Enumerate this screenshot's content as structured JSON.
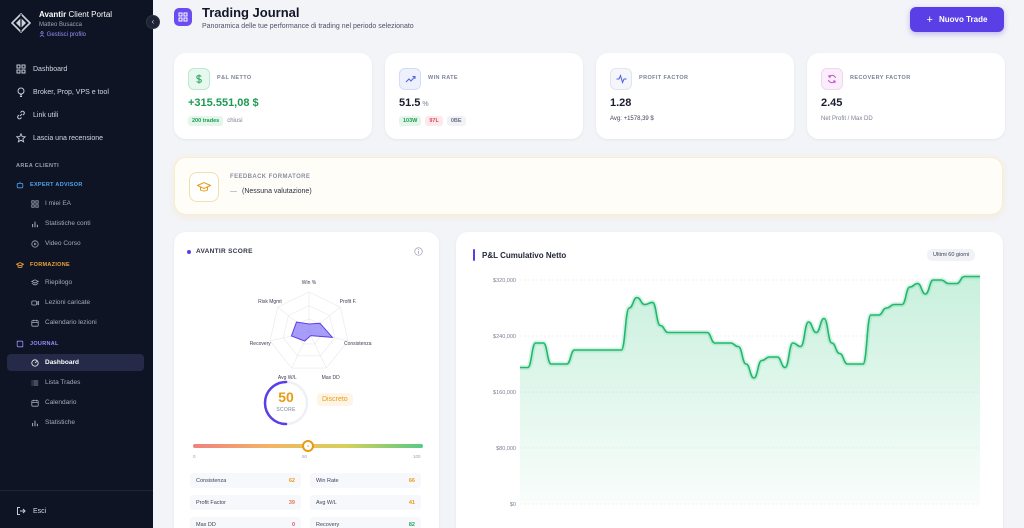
{
  "sidebar": {
    "brand_bold": "Avantir",
    "brand_light": "Client Portal",
    "user": "Matteo Busacca",
    "profile_link": "Gestisci profilo",
    "collapse": "‹",
    "items": [
      "Dashboard",
      "Broker, Prop, VPS e tool",
      "Link utili",
      "Lascia una recensione"
    ],
    "section": "AREA CLIENTI",
    "groups": [
      {
        "label": "EXPERT ADVISOR",
        "color": "#4ea3f1",
        "items": [
          "I miei EA",
          "Statistiche conti",
          "Video Corso"
        ]
      },
      {
        "label": "FORMAZIONE",
        "color": "#f1a43a",
        "items": [
          "Riepilogo",
          "Lezioni caricate",
          "Calendario lezioni"
        ]
      },
      {
        "label": "JOURNAL",
        "color": "#9c8cff",
        "items": [
          "Dashboard",
          "Lista Trades",
          "Calendario",
          "Statistiche"
        ]
      }
    ],
    "logout": "Esci"
  },
  "header": {
    "title": "Trading Journal",
    "subtitle": "Panoramica delle tue performance di trading nel periodo selezionato",
    "new_button": "Nuovo Trade"
  },
  "kpis": {
    "pnl": {
      "label": "P&L NETTO",
      "value": "+315.551,08 $",
      "badge": "200 trades",
      "note": "chiusi"
    },
    "winrate": {
      "label": "WIN RATE",
      "value": "51.5",
      "unit": "%",
      "wins": "103W",
      "losses": "97L",
      "be": "0BE"
    },
    "pf": {
      "label": "PROFIT FACTOR",
      "value": "1.28",
      "note": "Avg: +1578,39 $"
    },
    "rf": {
      "label": "RECOVERY FACTOR",
      "value": "2.45",
      "note": "Net Profit / Max DD"
    }
  },
  "feedback": {
    "label": "FEEDBACK FORMATORE",
    "dash": "—",
    "text": "(Nessuna valutazione)"
  },
  "score": {
    "title": "AVANTIR SCORE",
    "radar_labels": [
      "Win %",
      "Profit F.",
      "Consistenza",
      "Max DD",
      "Avg W/L",
      "Recovery",
      "Risk Mgmt"
    ],
    "radar_values": [
      0.2,
      0.35,
      0.6,
      0.1,
      0.25,
      0.45,
      0.4
    ],
    "value": "50",
    "value_label": "SCORE",
    "grade": "Discreto",
    "gauge_level": 50,
    "gauge_knob": "●",
    "gauge_ticks": [
      "0",
      "50",
      "100"
    ],
    "metrics": [
      {
        "label": "Consistenza",
        "value": "62",
        "color": "#e89b13"
      },
      {
        "label": "Win Rate",
        "value": "66",
        "color": "#e89b13"
      },
      {
        "label": "Profit Factor",
        "value": "39",
        "color": "#e8734d"
      },
      {
        "label": "Avg W/L",
        "value": "41",
        "color": "#e89b13"
      },
      {
        "label": "Max DD",
        "value": "0",
        "color": "#e04f5f"
      },
      {
        "label": "Recovery",
        "value": "82",
        "color": "#22a55e"
      }
    ]
  },
  "chart_data": {
    "type": "area",
    "title": "P&L Cumulativo Netto",
    "range_label": "Ultimi 60 giorni",
    "yticks": [
      "$320,000",
      "$240,000",
      "$160,000",
      "$80,000",
      "$0"
    ],
    "y_tick_values": [
      320000,
      240000,
      160000,
      80000,
      0
    ],
    "ylim": [
      0,
      320000
    ],
    "values": [
      195000,
      195000,
      230000,
      230000,
      200000,
      200000,
      200000,
      220000,
      220000,
      220000,
      220000,
      220000,
      220000,
      220000,
      280000,
      295000,
      285000,
      288000,
      255000,
      245000,
      245000,
      245000,
      245000,
      245000,
      245000,
      230000,
      230000,
      230000,
      225000,
      200000,
      180000,
      205000,
      210000,
      210000,
      195000,
      230000,
      225000,
      260000,
      245000,
      265000,
      230000,
      215000,
      200000,
      200000,
      200000,
      270000,
      270000,
      280000,
      285000,
      285000,
      310000,
      315000,
      300000,
      320000,
      320000,
      315000,
      315000,
      325000,
      325000,
      325000
    ],
    "grid": true
  }
}
